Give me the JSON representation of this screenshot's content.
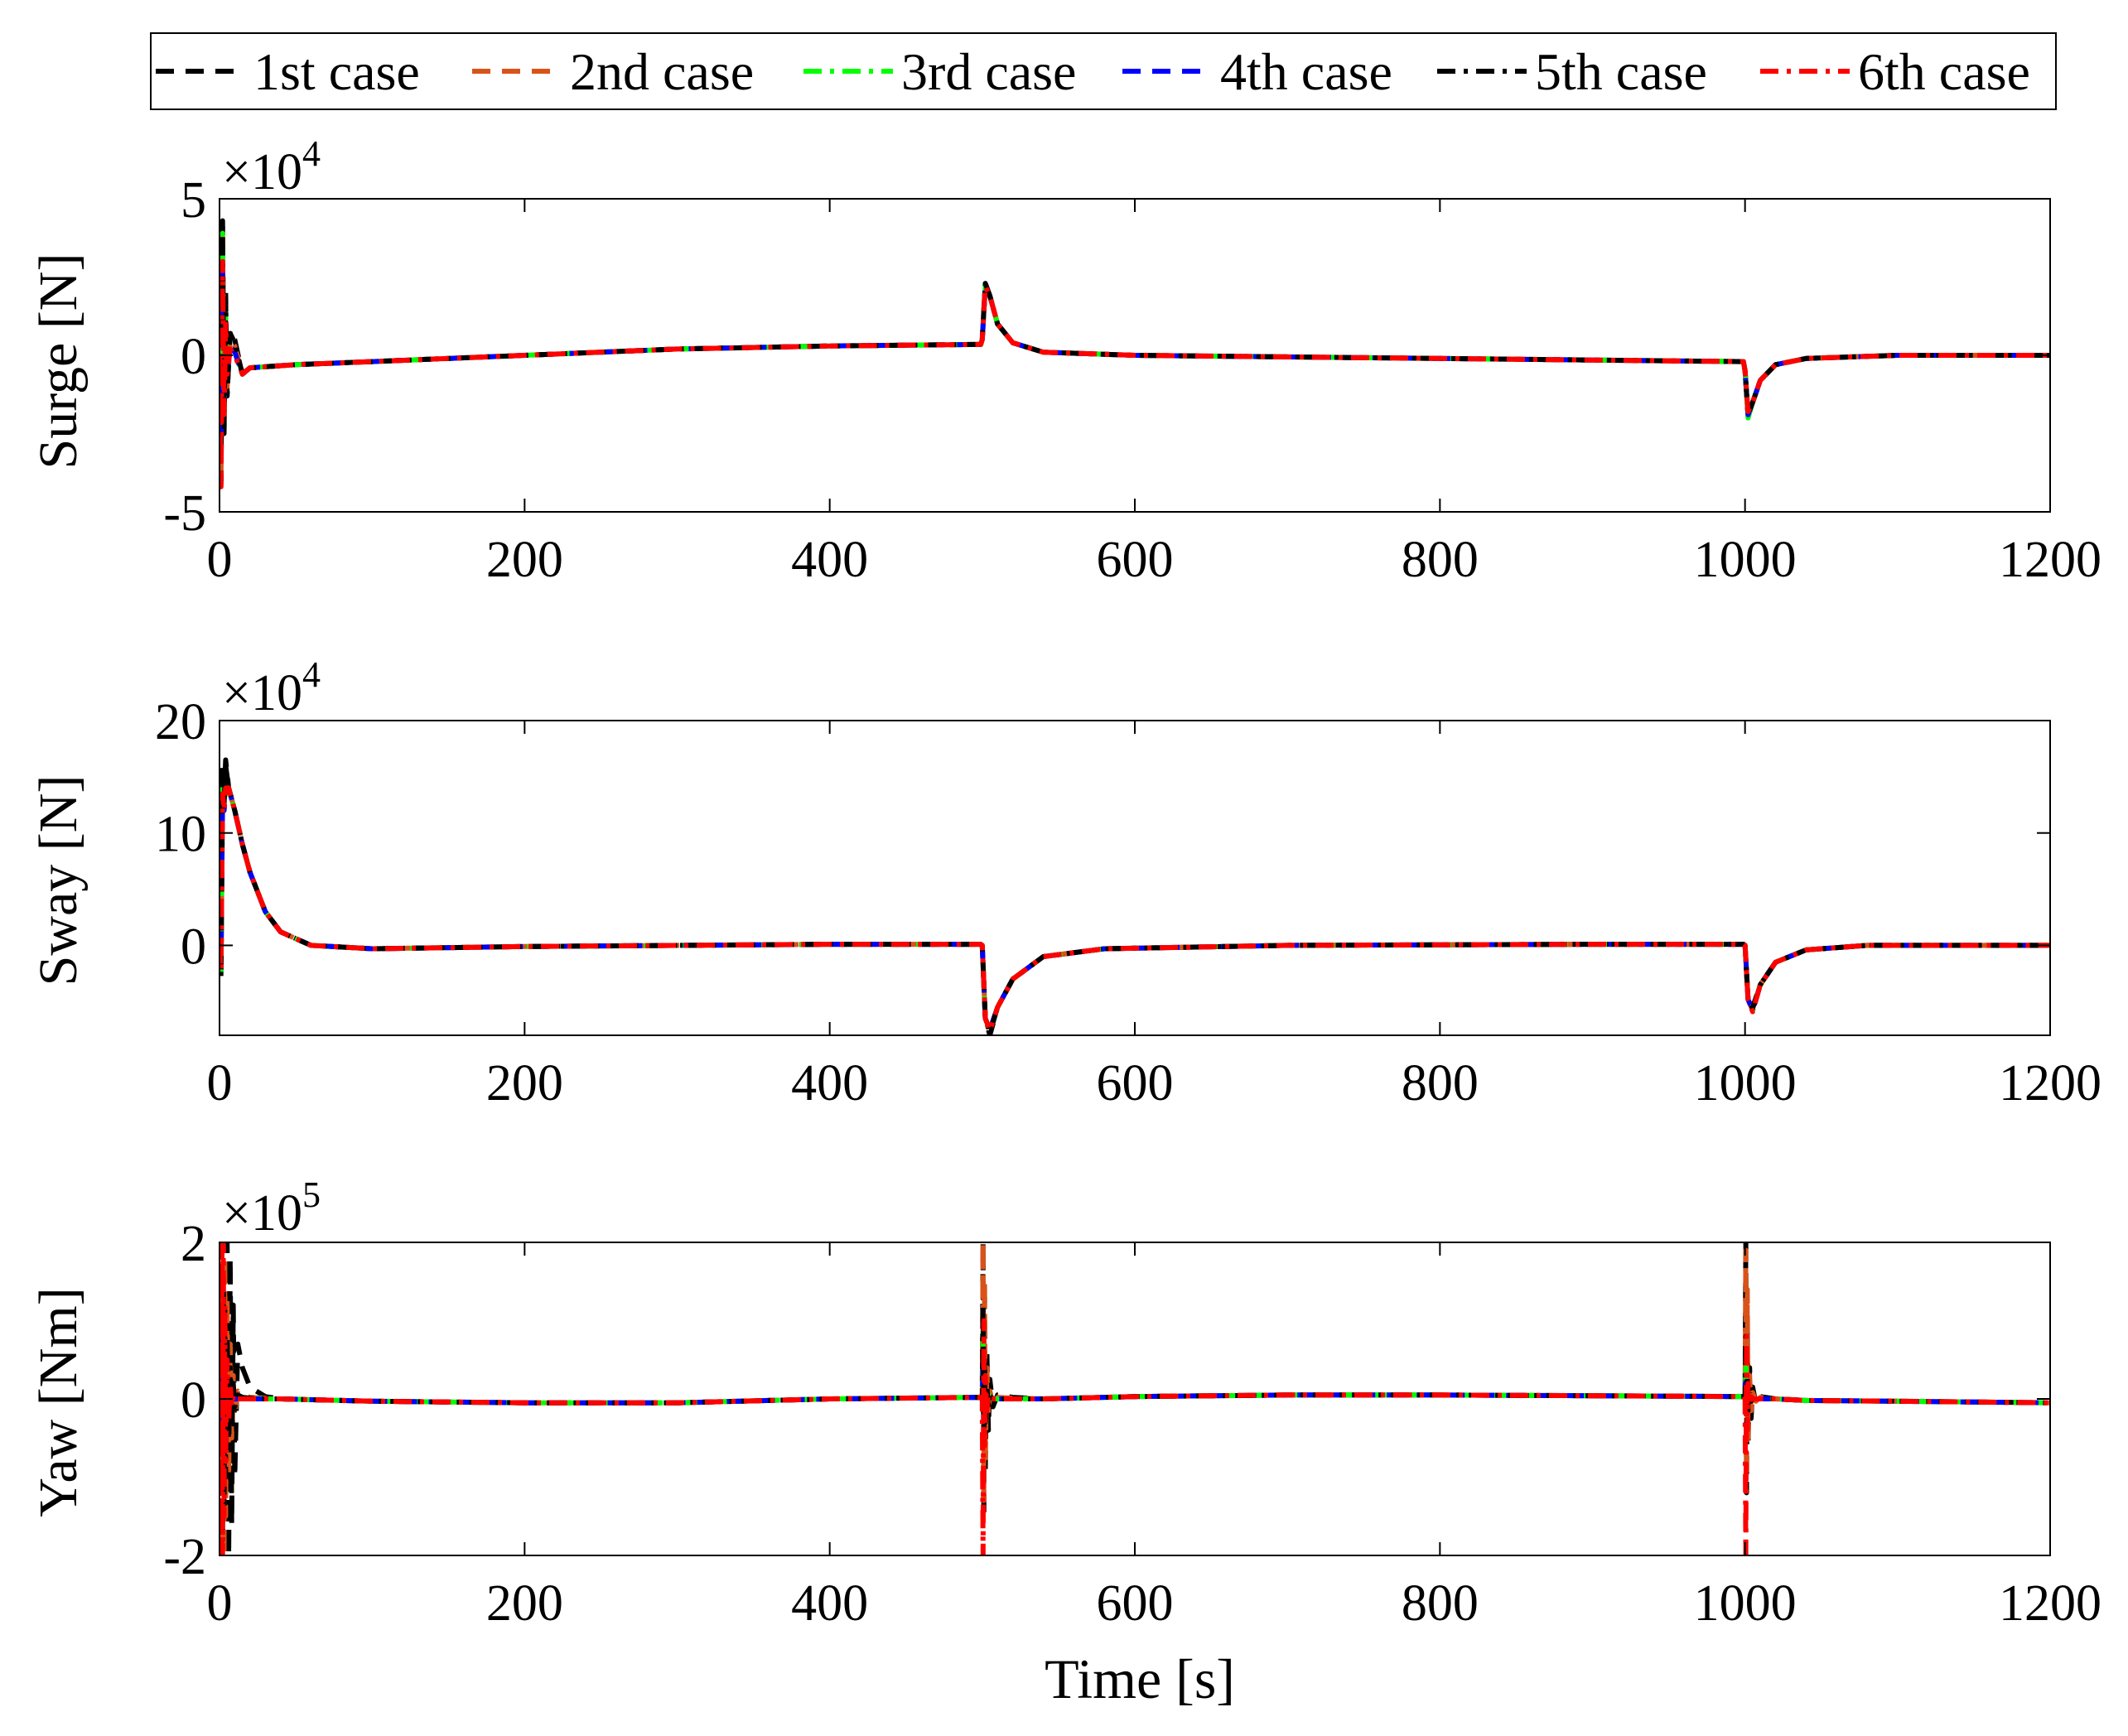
{
  "chart_data": {
    "type": "line",
    "shared_x": {
      "label": "Time [s]",
      "range": [
        0,
        1200
      ],
      "ticks": [
        0,
        200,
        400,
        600,
        800,
        1000,
        1200
      ],
      "tick_labels": [
        "0",
        "200",
        "400",
        "600",
        "800",
        "1000",
        "1200"
      ]
    },
    "legend": {
      "placement": "top",
      "entries": [
        {
          "name": "1st case",
          "color": "#000000",
          "dash": "dash"
        },
        {
          "name": "2nd case",
          "color": "#d95319",
          "dash": "dash"
        },
        {
          "name": "3rd case",
          "color": "#00ff00",
          "dash": "dashdot"
        },
        {
          "name": "4th case",
          "color": "#0000ff",
          "dash": "dash"
        },
        {
          "name": "5th case",
          "color": "#000000",
          "dash": "dashdot"
        },
        {
          "name": "6th case",
          "color": "#ff0000",
          "dash": "dashdot"
        }
      ]
    },
    "grid": false,
    "panels": [
      {
        "id": "surge",
        "ylabel": "Surge [N]",
        "exponent_base": "×10",
        "exponent_power": "4",
        "ylim": [
          -5,
          5
        ],
        "yticks": [
          -5,
          0,
          5
        ],
        "ytick_labels": [
          "-5",
          "0",
          "5"
        ],
        "x": [
          0,
          1,
          2,
          3,
          4,
          5,
          7,
          10,
          15,
          20,
          50,
          100,
          200,
          300,
          400,
          499,
          500,
          502,
          505,
          510,
          520,
          540,
          600,
          800,
          999,
          1000,
          1002,
          1005,
          1010,
          1020,
          1040,
          1100,
          1200
        ],
        "series_values": [
          [
            0,
            -4.1,
            4.3,
            -2.5,
            2.0,
            -1.3,
            0.8,
            0.5,
            -0.6,
            -0.4,
            -0.3,
            -0.2,
            0,
            0.2,
            0.3,
            0.35,
            0.5,
            2.3,
            1.9,
            1.0,
            0.4,
            0.1,
            0,
            -0.1,
            -0.2,
            -0.5,
            -1.9,
            -1.5,
            -0.8,
            -0.3,
            -0.1,
            0,
            0
          ],
          [
            0,
            -3.9,
            3.8,
            -2.2,
            1.6,
            -1.0,
            0.5,
            0.3,
            -0.6,
            -0.4,
            -0.3,
            -0.2,
            0,
            0.2,
            0.3,
            0.35,
            0.5,
            2.3,
            1.9,
            1.0,
            0.4,
            0.1,
            0,
            -0.1,
            -0.2,
            -0.5,
            -1.9,
            -1.5,
            -0.8,
            -0.3,
            -0.1,
            0,
            0
          ],
          [
            0,
            -3.5,
            3.9,
            -2.0,
            1.4,
            -0.8,
            0.3,
            0.1,
            -0.6,
            -0.4,
            -0.3,
            -0.2,
            0,
            0.2,
            0.3,
            0.35,
            0.5,
            2.2,
            1.9,
            1.0,
            0.4,
            0.1,
            0,
            -0.1,
            -0.2,
            -0.5,
            -2.0,
            -1.5,
            -0.8,
            -0.3,
            -0.1,
            0,
            0
          ],
          [
            0,
            -3.2,
            2.9,
            -1.8,
            1.2,
            -0.7,
            0.3,
            0.1,
            -0.6,
            -0.4,
            -0.3,
            -0.2,
            0,
            0.2,
            0.3,
            0.35,
            0.5,
            2.2,
            1.9,
            1.0,
            0.4,
            0.1,
            0,
            -0.1,
            -0.2,
            -0.5,
            -1.9,
            -1.5,
            -0.8,
            -0.3,
            -0.1,
            0,
            0
          ],
          [
            0,
            -4.0,
            4.1,
            -2.4,
            1.8,
            -1.2,
            0.7,
            0.4,
            -0.6,
            -0.4,
            -0.3,
            -0.2,
            0,
            0.2,
            0.3,
            0.35,
            0.5,
            2.3,
            1.9,
            1.0,
            0.4,
            0.1,
            0,
            -0.1,
            -0.2,
            -0.5,
            -1.9,
            -1.5,
            -0.8,
            -0.3,
            -0.1,
            0,
            0
          ],
          [
            0,
            -4.2,
            3.0,
            -1.9,
            1.0,
            -0.6,
            0.2,
            0.0,
            -0.6,
            -0.4,
            -0.3,
            -0.2,
            0,
            0.2,
            0.3,
            0.35,
            0.5,
            2.2,
            1.9,
            1.0,
            0.4,
            0.1,
            0,
            -0.1,
            -0.2,
            -0.5,
            -1.8,
            -1.5,
            -0.8,
            -0.3,
            -0.1,
            0,
            0
          ]
        ]
      },
      {
        "id": "sway",
        "ylabel": "Sway [N]",
        "exponent_base": "×10",
        "exponent_power": "4",
        "ylim": [
          -8,
          20
        ],
        "yticks": [
          0,
          10,
          20
        ],
        "ytick_labels": [
          "0",
          "10",
          "20"
        ],
        "x": [
          0,
          1,
          2,
          3,
          4,
          6,
          10,
          15,
          20,
          30,
          40,
          60,
          100,
          200,
          400,
          499,
          500,
          502,
          505,
          510,
          520,
          540,
          580,
          700,
          900,
          999,
          1000,
          1002,
          1005,
          1010,
          1020,
          1040,
          1080,
          1200
        ],
        "series_values": [
          [
            0,
            -2.5,
            16,
            13,
            16.5,
            14,
            12,
            9,
            6.5,
            3,
            1.2,
            0,
            -0.3,
            -0.1,
            0.1,
            0.1,
            0,
            -6.5,
            -8,
            -5.5,
            -3,
            -1,
            -0.3,
            0,
            0.1,
            0.1,
            0,
            -4.8,
            -5.5,
            -3.5,
            -1.5,
            -0.4,
            0,
            0
          ],
          [
            0,
            -2.0,
            14,
            13,
            14.5,
            14,
            12,
            9,
            6.5,
            3,
            1.2,
            0,
            -0.3,
            -0.1,
            0.1,
            0.1,
            0,
            -6.5,
            -7.5,
            -5.5,
            -3,
            -1,
            -0.3,
            0,
            0.1,
            0.1,
            0,
            -4.8,
            -5.8,
            -3.5,
            -1.5,
            -0.4,
            0,
            0
          ],
          [
            0,
            -3.0,
            14.5,
            12,
            14,
            14,
            12,
            9,
            6.5,
            3,
            1.2,
            0,
            -0.3,
            -0.1,
            0.1,
            0.1,
            0,
            -6.5,
            -7.5,
            -5.5,
            -3,
            -1,
            -0.3,
            0,
            0.1,
            0.1,
            0,
            -4.8,
            -5.8,
            -3.5,
            -1.5,
            -0.4,
            0,
            0
          ],
          [
            0,
            -1.5,
            13,
            12,
            13.5,
            14,
            12,
            9,
            6.5,
            3,
            1.2,
            0,
            -0.3,
            -0.1,
            0.1,
            0.1,
            0,
            -6.5,
            -7.5,
            -5.5,
            -3,
            -1,
            -0.3,
            0,
            0.1,
            0.1,
            0,
            -4.8,
            -5.8,
            -3.5,
            -1.5,
            -0.4,
            0,
            0
          ],
          [
            0,
            -2.8,
            15.5,
            12.5,
            16,
            14,
            12,
            9,
            6.5,
            3,
            1.2,
            0,
            -0.3,
            -0.1,
            0.1,
            0.1,
            0,
            -6.5,
            -7.8,
            -5.5,
            -3,
            -1,
            -0.3,
            0,
            0.1,
            0.1,
            0,
            -4.8,
            -5.6,
            -3.5,
            -1.5,
            -0.4,
            0,
            0
          ],
          [
            0,
            -2.2,
            13.5,
            12,
            14,
            14,
            12,
            9,
            6.5,
            3,
            1.2,
            0,
            -0.3,
            -0.1,
            0.1,
            0.1,
            0,
            -6.5,
            -7.6,
            -5.5,
            -3,
            -1,
            -0.3,
            0,
            0.1,
            0.1,
            0,
            -4.8,
            -5.9,
            -3.5,
            -1.5,
            -0.4,
            0,
            0
          ]
        ]
      },
      {
        "id": "yaw",
        "ylabel": "Yaw [Nm]",
        "exponent_base": "×10",
        "exponent_power": "5",
        "ylim": [
          -2,
          2
        ],
        "yticks": [
          -2,
          0,
          2
        ],
        "ytick_labels": [
          "-2",
          "0",
          "2"
        ],
        "x": [
          0,
          0.5,
          1,
          1.5,
          2,
          2.5,
          3,
          3.5,
          4,
          5,
          6,
          7,
          8,
          9,
          10,
          12,
          15,
          20,
          30,
          40,
          100,
          200,
          300,
          400,
          499,
          500,
          500.5,
          501,
          501.5,
          502,
          503,
          504,
          505,
          507,
          510,
          520,
          540,
          600,
          700,
          800,
          900,
          999,
          1000,
          1000.5,
          1001,
          1001.5,
          1002,
          1003,
          1004,
          1005,
          1007,
          1010,
          1020,
          1040,
          1100,
          1200
        ],
        "series_values": [
          [
            0,
            2,
            -2,
            2,
            -2,
            2,
            -2,
            2,
            -2,
            2,
            -2,
            1.8,
            -1.6,
            1.2,
            -1.0,
            0.7,
            0.4,
            0.15,
            0.03,
            0,
            -0.03,
            -0.05,
            -0.05,
            0,
            0.02,
            0,
            2,
            -1.5,
            1.3,
            -0.9,
            0.6,
            -0.4,
            0.25,
            -0.1,
            0.05,
            0.02,
            0,
            0.03,
            0.05,
            0.05,
            0.04,
            0.03,
            0,
            2,
            -1.2,
            0.9,
            -0.6,
            0.4,
            -0.25,
            0.15,
            -0.05,
            0.03,
            0,
            -0.02,
            -0.03,
            -0.05
          ],
          [
            0,
            2,
            -2,
            2,
            -2,
            2,
            -2,
            1.8,
            -1.5,
            1.3,
            -1.0,
            0.7,
            -0.5,
            0.3,
            -0.2,
            0.1,
            0.05,
            0.02,
            0.01,
            0,
            -0.03,
            -0.05,
            -0.05,
            0,
            0.02,
            0,
            2,
            -1.3,
            1.5,
            -0.8,
            0.4,
            -0.2,
            0.1,
            -0.05,
            0.02,
            0.01,
            0,
            0.03,
            0.05,
            0.05,
            0.04,
            0.03,
            0,
            1.9,
            -1.0,
            1.4,
            -0.5,
            0.3,
            -0.15,
            0.08,
            -0.03,
            0.02,
            0,
            -0.02,
            -0.03,
            -0.05
          ],
          [
            0,
            1.5,
            -1.0,
            0.8,
            -0.6,
            0.4,
            -0.3,
            0.2,
            -0.1,
            0.15,
            0.05,
            0.05,
            0,
            0.02,
            0,
            0,
            0,
            0.01,
            0,
            0,
            -0.03,
            -0.05,
            -0.05,
            0,
            0.02,
            0,
            0.9,
            -0.5,
            0.4,
            -0.2,
            0.1,
            0.05,
            0,
            0,
            0,
            0,
            0,
            0.03,
            0.05,
            0.05,
            0.04,
            0.03,
            0,
            0.4,
            -0.2,
            0.15,
            -0.05,
            0.03,
            0,
            0,
            0,
            0,
            0,
            -0.02,
            -0.03,
            -0.05
          ],
          [
            0,
            1.0,
            -0.5,
            0.4,
            -0.3,
            0.2,
            -0.1,
            0.1,
            0,
            0.1,
            0,
            0.03,
            0,
            0.01,
            0,
            0,
            0,
            0,
            0,
            0,
            -0.03,
            -0.05,
            -0.05,
            0,
            0.02,
            0,
            0.5,
            -0.3,
            0.2,
            -0.1,
            0.05,
            0,
            0,
            0,
            0,
            0,
            0,
            0.03,
            0.05,
            0.05,
            0.04,
            0.03,
            0,
            0.3,
            -0.1,
            0.1,
            -0.03,
            0.02,
            0,
            0,
            0,
            0,
            0,
            -0.02,
            -0.03,
            -0.05
          ],
          [
            0,
            2,
            -2,
            2,
            -1.8,
            1.6,
            -1.4,
            1.2,
            -1.0,
            0.8,
            -0.6,
            0.4,
            -0.3,
            0.2,
            -0.1,
            0.05,
            0.02,
            0.01,
            0,
            0,
            -0.03,
            -0.05,
            -0.05,
            0,
            0.02,
            0,
            1.2,
            -0.6,
            0.5,
            -0.3,
            0.15,
            -0.08,
            0.04,
            0,
            0,
            0,
            0,
            0.03,
            0.05,
            0.05,
            0.04,
            0.03,
            0,
            0.8,
            -0.4,
            0.3,
            -0.15,
            0.08,
            -0.03,
            0,
            0,
            0,
            0,
            -0.02,
            -0.03,
            -0.05
          ],
          [
            0,
            2,
            -2,
            2,
            -2,
            2,
            -1.5,
            1.2,
            -0.8,
            0.5,
            -0.3,
            0.2,
            -0.1,
            0.05,
            0,
            0,
            0,
            0,
            0,
            0,
            -0.03,
            -0.05,
            -0.05,
            0,
            0.02,
            0,
            -2,
            1.0,
            -0.6,
            0.3,
            -0.15,
            0.05,
            0,
            0,
            0,
            0,
            0,
            0.03,
            0.05,
            0.05,
            0.04,
            0.03,
            0,
            -2,
            0.8,
            -0.4,
            0.2,
            -0.08,
            0.03,
            0,
            0,
            0,
            0,
            -0.02,
            -0.03,
            -0.05
          ]
        ]
      }
    ]
  }
}
